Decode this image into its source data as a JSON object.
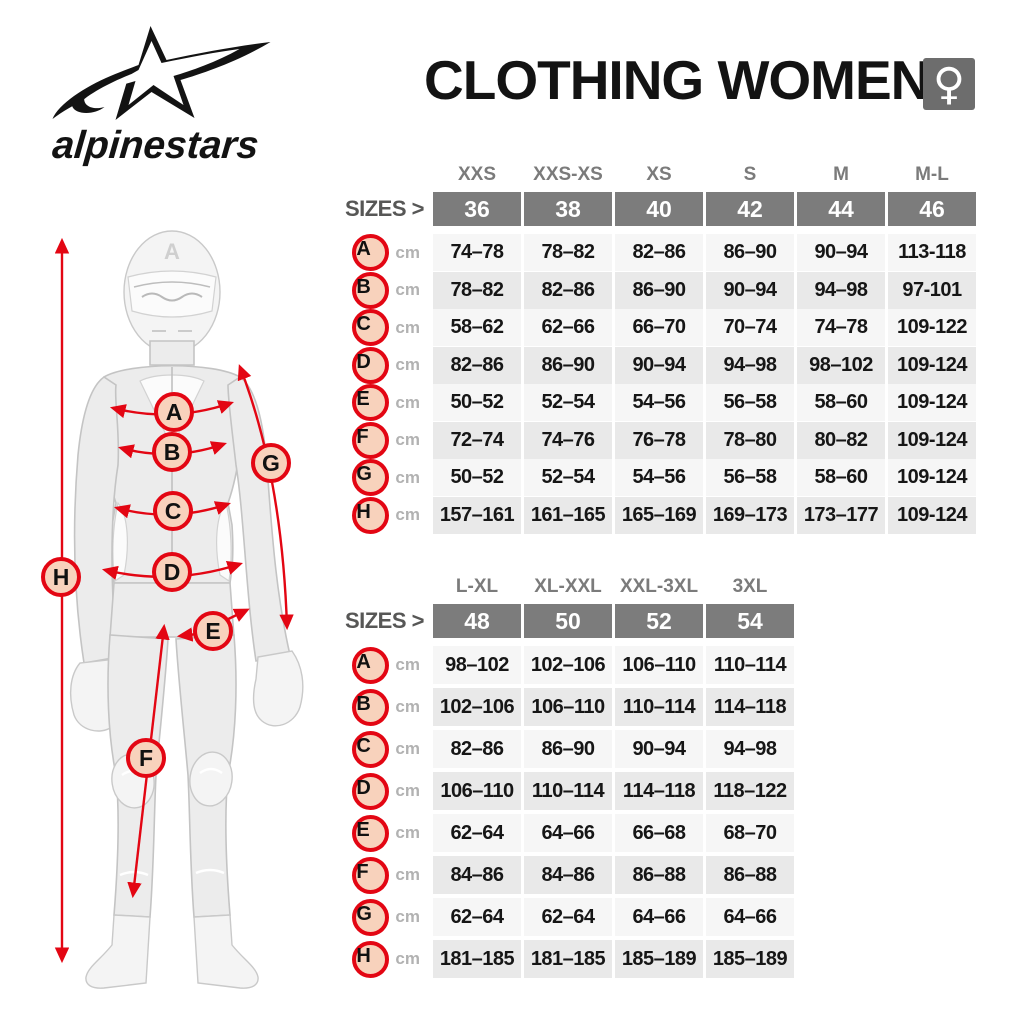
{
  "brand": {
    "wordmark": "alpinestars"
  },
  "header": {
    "title": "CLOTHING WOMEN",
    "gender_symbol": "♀"
  },
  "figure": {
    "helmet_mark": "A",
    "points": [
      "A",
      "B",
      "C",
      "D",
      "E",
      "F",
      "G",
      "H"
    ]
  },
  "size_tables": [
    {
      "sizes_label": "SIZES >",
      "size_names": [
        "XXS",
        "XXS-XS",
        "XS",
        "S",
        "M",
        "M-L"
      ],
      "size_numbers": [
        "36",
        "38",
        "40",
        "42",
        "44",
        "46"
      ],
      "unit": "cm",
      "rows": [
        {
          "letter": "A",
          "values": [
            "74–78",
            "78–82",
            "82–86",
            "86–90",
            "90–94",
            "113-118"
          ]
        },
        {
          "letter": "B",
          "values": [
            "78–82",
            "82–86",
            "86–90",
            "90–94",
            "94–98",
            "97-101"
          ]
        },
        {
          "letter": "C",
          "values": [
            "58–62",
            "62–66",
            "66–70",
            "70–74",
            "74–78",
            "109-122"
          ]
        },
        {
          "letter": "D",
          "values": [
            "82–86",
            "86–90",
            "90–94",
            "94–98",
            "98–102",
            "109-124"
          ]
        },
        {
          "letter": "E",
          "values": [
            "50–52",
            "52–54",
            "54–56",
            "56–58",
            "58–60",
            "109-124"
          ]
        },
        {
          "letter": "F",
          "values": [
            "72–74",
            "74–76",
            "76–78",
            "78–80",
            "80–82",
            "109-124"
          ]
        },
        {
          "letter": "G",
          "values": [
            "50–52",
            "52–54",
            "54–56",
            "56–58",
            "58–60",
            "109-124"
          ]
        },
        {
          "letter": "H",
          "values": [
            "157–161",
            "161–165",
            "165–169",
            "169–173",
            "173–177",
            "109-124"
          ]
        }
      ]
    },
    {
      "sizes_label": "SIZES >",
      "size_names": [
        "L-XL",
        "XL-XXL",
        "XXL-3XL",
        "3XL"
      ],
      "size_numbers": [
        "48",
        "50",
        "52",
        "54"
      ],
      "unit": "cm",
      "rows": [
        {
          "letter": "A",
          "values": [
            "98–102",
            "102–106",
            "106–110",
            "110–114"
          ]
        },
        {
          "letter": "B",
          "values": [
            "102–106",
            "106–110",
            "110–114",
            "114–118"
          ]
        },
        {
          "letter": "C",
          "values": [
            "82–86",
            "86–90",
            "90–94",
            "94–98"
          ]
        },
        {
          "letter": "D",
          "values": [
            "106–110",
            "110–114",
            "114–118",
            "118–122"
          ]
        },
        {
          "letter": "E",
          "values": [
            "62–64",
            "64–66",
            "66–68",
            "68–70"
          ]
        },
        {
          "letter": "F",
          "values": [
            "84–86",
            "84–86",
            "86–88",
            "86–88"
          ]
        },
        {
          "letter": "G",
          "values": [
            "62–64",
            "62–64",
            "64–66",
            "64–66"
          ]
        },
        {
          "letter": "H",
          "values": [
            "181–185",
            "181–185",
            "185–189",
            "185–189"
          ]
        }
      ]
    }
  ],
  "colors": {
    "accent_red": "#e30613",
    "badge_fill": "#f8d2bc",
    "size_cell_gray": "#7c7c7c",
    "row_light": "#f6f6f6",
    "row_dark": "#e9e9e9",
    "gender_box_gray": "#6d6d6d"
  }
}
